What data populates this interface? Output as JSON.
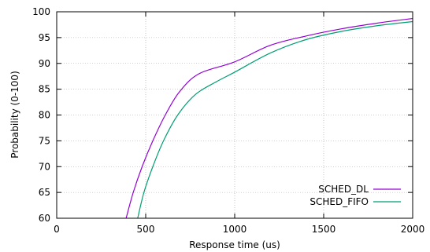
{
  "chart_data": {
    "type": "line",
    "title": "",
    "xlabel": "Response time (us)",
    "ylabel": "Probability (0-100)",
    "xlim": [
      0,
      2000
    ],
    "ylim": [
      60,
      100
    ],
    "x_ticks": [
      "0",
      "500",
      "1000",
      "1500",
      "2000"
    ],
    "y_ticks": [
      "60",
      "65",
      "70",
      "75",
      "80",
      "85",
      "90",
      "95",
      "100"
    ],
    "grid": true,
    "legend_position": "bottom-right",
    "series": [
      {
        "name": "SCHED_DL",
        "color": "#9400d3",
        "points": [
          [
            390,
            60
          ],
          [
            430,
            65
          ],
          [
            480,
            70
          ],
          [
            540,
            75
          ],
          [
            610,
            80
          ],
          [
            690,
            84.5
          ],
          [
            800,
            88
          ],
          [
            1000,
            90.3
          ],
          [
            1200,
            93.5
          ],
          [
            1400,
            95.3
          ],
          [
            1600,
            96.7
          ],
          [
            1800,
            97.8
          ],
          [
            2000,
            98.7
          ]
        ]
      },
      {
        "name": "SCHED_FIFO",
        "color": "#009e73",
        "points": [
          [
            455,
            60
          ],
          [
            490,
            65
          ],
          [
            540,
            70
          ],
          [
            600,
            75
          ],
          [
            680,
            80
          ],
          [
            780,
            84
          ],
          [
            900,
            86.5
          ],
          [
            1000,
            88.3
          ],
          [
            1200,
            92
          ],
          [
            1400,
            94.6
          ],
          [
            1600,
            96.2
          ],
          [
            1800,
            97.3
          ],
          [
            2000,
            98.1
          ]
        ]
      }
    ]
  }
}
